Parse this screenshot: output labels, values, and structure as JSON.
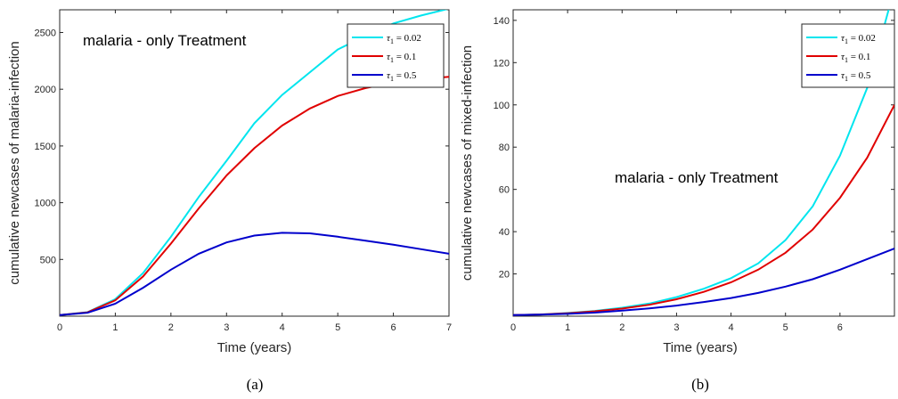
{
  "chart_data": [
    {
      "type": "line",
      "panel_label": "(a)",
      "annotation": "malaria - only Treatment",
      "xlabel": "Time (years)",
      "ylabel": "cumulative newcases of malaria-infection",
      "xlim": [
        0,
        7
      ],
      "ylim": [
        0,
        2700
      ],
      "xticks": [
        "0",
        "1",
        "2",
        "3",
        "4",
        "5",
        "6",
        "7"
      ],
      "yticks": [
        "500",
        "1000",
        "1500",
        "2000",
        "2500"
      ],
      "legend_position": "top-right",
      "series": [
        {
          "legend_symbol": "τ",
          "legend_subscript": "1",
          "legend_value": " = 0.02",
          "color": "#00e5ee",
          "x": [
            0,
            0.5,
            1,
            1.5,
            2,
            2.5,
            3,
            3.5,
            4,
            4.5,
            5,
            5.5,
            6,
            6.5,
            7
          ],
          "y": [
            10,
            35,
            150,
            380,
            700,
            1050,
            1370,
            1700,
            1950,
            2150,
            2350,
            2470,
            2580,
            2650,
            2710
          ]
        },
        {
          "legend_symbol": "τ",
          "legend_subscript": "1",
          "legend_value": " = 0.1",
          "color": "#e00000",
          "x": [
            0,
            0.5,
            1,
            1.5,
            2,
            2.5,
            3,
            3.5,
            4,
            4.5,
            5,
            5.5,
            6,
            6.5,
            7
          ],
          "y": [
            10,
            34,
            140,
            350,
            640,
            950,
            1240,
            1480,
            1680,
            1830,
            1940,
            2010,
            2060,
            2090,
            2110
          ]
        },
        {
          "legend_symbol": "τ",
          "legend_subscript": "1",
          "legend_value": " = 0.5",
          "color": "#0000cc",
          "x": [
            0,
            0.5,
            1,
            1.5,
            2,
            2.5,
            3,
            3.5,
            4,
            4.5,
            5,
            5.5,
            6,
            6.5,
            7
          ],
          "y": [
            10,
            30,
            110,
            250,
            410,
            550,
            650,
            710,
            735,
            730,
            700,
            665,
            630,
            590,
            550
          ]
        }
      ]
    },
    {
      "type": "line",
      "panel_label": "(b)",
      "annotation": "malaria - only Treatment",
      "xlabel": "Time (years)",
      "ylabel": "cumulative newcases of mixed-infection",
      "xlim": [
        0,
        7
      ],
      "ylim": [
        0,
        145
      ],
      "xticks": [
        "0",
        "1",
        "2",
        "3",
        "4",
        "5",
        "6"
      ],
      "yticks": [
        "20",
        "40",
        "60",
        "80",
        "100",
        "120",
        "140"
      ],
      "legend_position": "top-right",
      "series": [
        {
          "legend_symbol": "τ",
          "legend_subscript": "1",
          "legend_value": " = 0.02",
          "color": "#00e5ee",
          "x": [
            0,
            0.5,
            1,
            1.5,
            2,
            2.5,
            3,
            3.5,
            4,
            4.5,
            5,
            5.5,
            6,
            6.5,
            7
          ],
          "y": [
            0.5,
            0.8,
            1.5,
            2.5,
            4,
            6,
            9,
            13,
            18,
            25,
            36,
            52,
            76,
            108,
            155
          ]
        },
        {
          "legend_symbol": "τ",
          "legend_subscript": "1",
          "legend_value": " = 0.1",
          "color": "#e00000",
          "x": [
            0,
            0.5,
            1,
            1.5,
            2,
            2.5,
            3,
            3.5,
            4,
            4.5,
            5,
            5.5,
            6,
            6.5,
            7
          ],
          "y": [
            0.5,
            0.8,
            1.4,
            2.3,
            3.6,
            5.4,
            8,
            11.5,
            16,
            22,
            30,
            41,
            56,
            75,
            100
          ]
        },
        {
          "legend_symbol": "τ",
          "legend_subscript": "1",
          "legend_value": " = 0.5",
          "color": "#0000cc",
          "x": [
            0,
            0.5,
            1,
            1.5,
            2,
            2.5,
            3,
            3.5,
            4,
            4.5,
            5,
            5.5,
            6,
            6.5,
            7
          ],
          "y": [
            0.5,
            0.7,
            1.1,
            1.7,
            2.6,
            3.7,
            5,
            6.7,
            8.6,
            11,
            14,
            17.5,
            22,
            27,
            32
          ]
        }
      ]
    }
  ]
}
